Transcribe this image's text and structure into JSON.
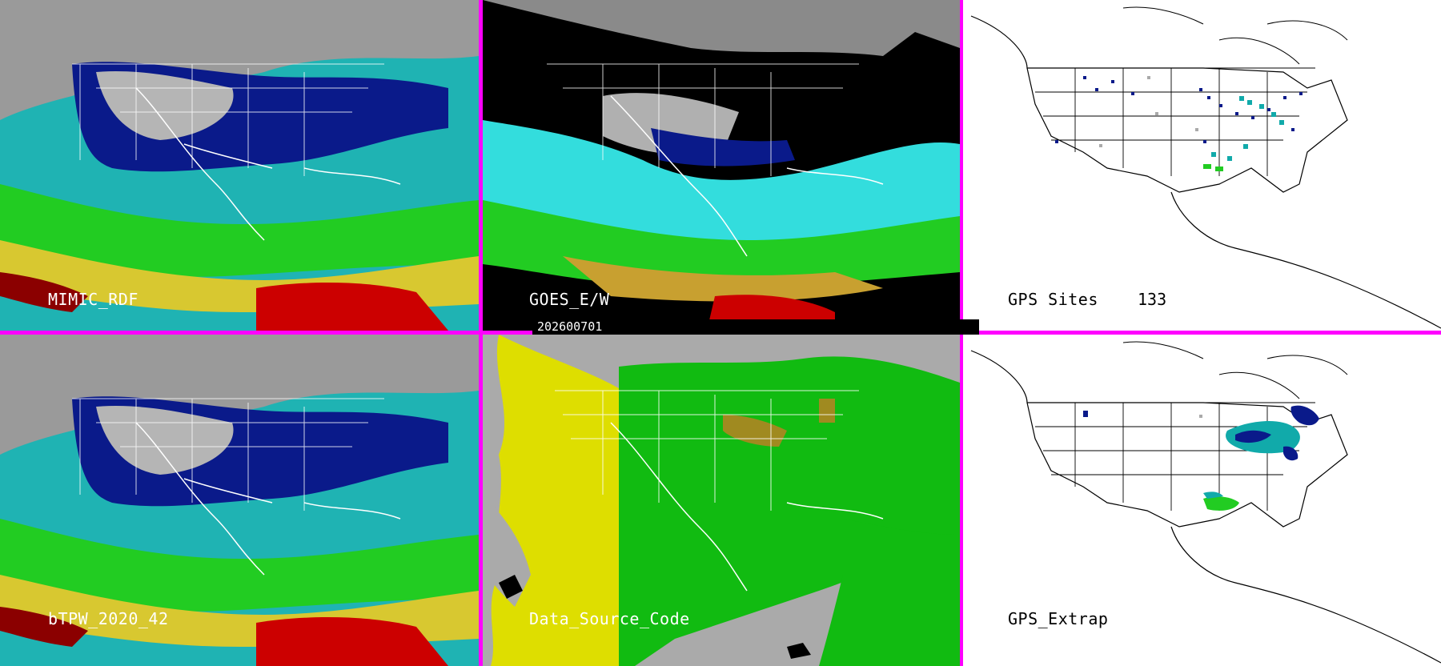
{
  "panels": {
    "mimic": {
      "label": "MIMIC_RDF"
    },
    "goes": {
      "label": "GOES_E/W"
    },
    "gps_sites": {
      "label": "GPS Sites",
      "count": "133"
    },
    "bltpw": {
      "label": "bTPW_2020_42"
    },
    "data_source": {
      "label": "Data_Source_Code"
    },
    "gps_extrap": {
      "label": "GPS_Extrap"
    }
  },
  "timestamp": "202600701",
  "colors": {
    "divider": "#ff00ff",
    "moist_red": "#cc0000",
    "moist_yellow": "#d8c830",
    "moist_green": "#22cc22",
    "moist_cyan": "#33dddd",
    "moist_blue": "#0a1a8a",
    "dry_gray": "#9a9a9a",
    "dsc_yellow": "#dede00",
    "dsc_green": "#11bb11",
    "dsc_olive": "#a08a20",
    "dsc_gray": "#aaaaaa"
  }
}
